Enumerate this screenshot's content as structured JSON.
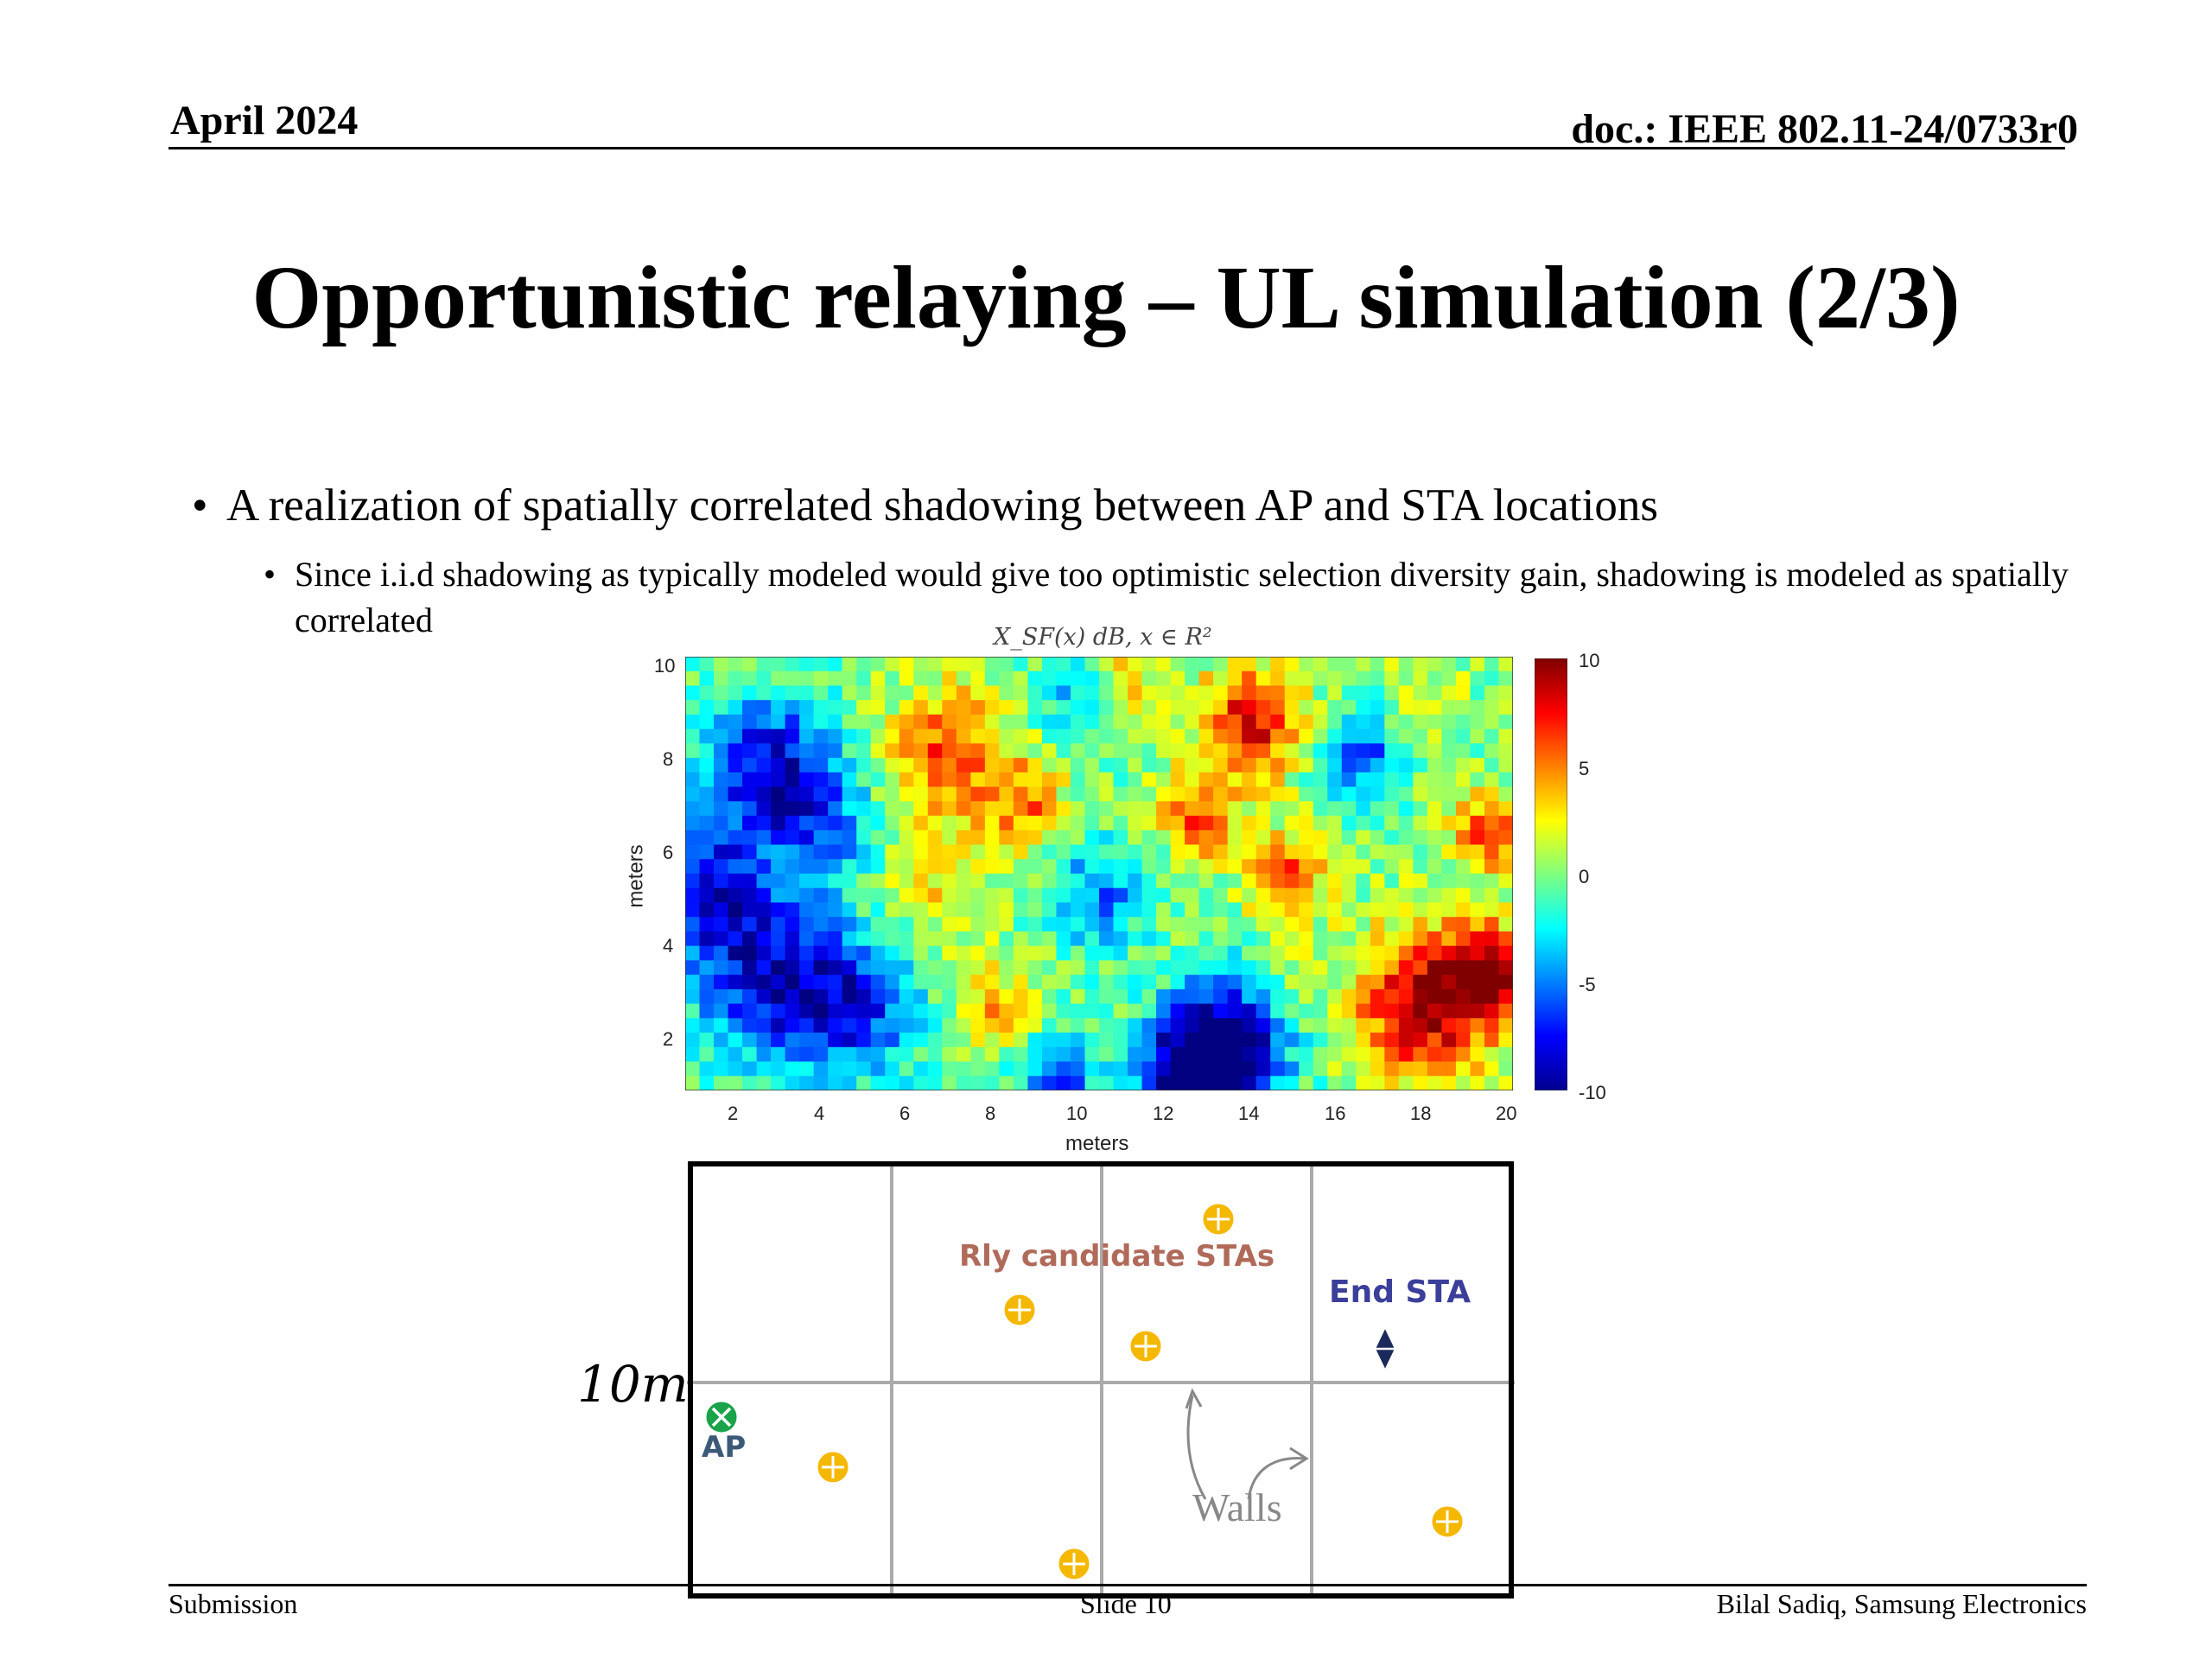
{
  "header": {
    "date": "April 2024",
    "doc": "doc.: IEEE 802.11-24/0733r0"
  },
  "title": "Opportunistic relaying – UL simulation (2/3)",
  "bullets": {
    "main": "A realization of spatially correlated shadowing between AP and STA locations",
    "sub": "Since i.i.d shadowing as typically modeled would give too optimistic selection diversity gain, shadowing is modeled as spatially correlated"
  },
  "heatmap": {
    "title": "X_SF(x) dB, x ∈ R²",
    "colormap": "jet",
    "xlabel": "meters",
    "ylabel": "meters",
    "xticks": [
      "2",
      "4",
      "6",
      "8",
      "10",
      "12",
      "14",
      "16",
      "18",
      "20"
    ],
    "yticks": [
      "2",
      "4",
      "6",
      "8",
      "10"
    ],
    "colorbar_ticks": [
      "10",
      "5",
      "0",
      "-5",
      "-10"
    ],
    "colorbar_range": [
      -10,
      10
    ]
  },
  "diagram": {
    "side_label": "10m",
    "relay_label": "Rly candidate STAs",
    "end_label": "End STA",
    "ap_label": "AP",
    "walls_label": "Walls",
    "colors": {
      "relay": "#f5b800",
      "ap": "#1aa34a",
      "end": "#1b2a5a",
      "relay_text": "#b06a5a",
      "end_text": "#3b3f9a",
      "ap_text": "#3c5a78"
    }
  },
  "footer": {
    "left": "Submission",
    "center": "Slide 10",
    "right": "Bilal Sadiq, Samsung Electronics"
  }
}
